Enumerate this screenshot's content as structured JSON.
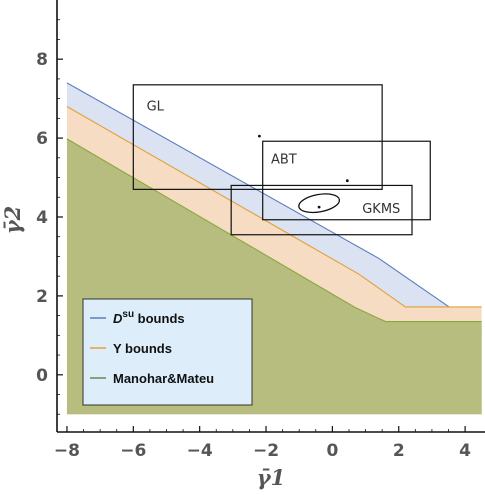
{
  "chart_data": {
    "type": "area",
    "title": "",
    "xlabel": "γ̄1",
    "ylabel": "γ̄2",
    "xlim": [
      -8.3,
      4.6
    ],
    "ylim": [
      -1.45,
      9.5
    ],
    "grid": false,
    "legend_placement": "bottom-left",
    "x_ticks": [
      -8,
      -6,
      -4,
      -2,
      0,
      2,
      4
    ],
    "y_ticks": [
      0,
      2,
      4,
      6,
      8
    ],
    "series": [
      {
        "name": "D^su bounds",
        "color": "#5b7fc0",
        "fill": "#dbe2f2",
        "points": [
          [
            -8.0,
            7.4
          ],
          [
            1.4,
            2.95
          ],
          [
            4.5,
            1.15
          ]
        ]
      },
      {
        "name": "Y bounds",
        "color": "#e3a03a",
        "fill": "#f5dcc2",
        "points": [
          [
            -8.0,
            6.8
          ],
          [
            0.8,
            2.55
          ],
          [
            2.2,
            1.72
          ],
          [
            4.5,
            1.72
          ]
        ]
      },
      {
        "name": "Manohar&Mateu",
        "color": "#8aa83b",
        "fill": "#b7bd7f",
        "points": [
          [
            -8.0,
            5.98
          ],
          [
            0.7,
            1.7
          ],
          [
            1.6,
            1.35
          ],
          [
            4.5,
            1.35
          ]
        ]
      }
    ],
    "region_bottom": -1.0,
    "boxes": [
      {
        "label": "GL",
        "x0": -6.0,
        "x1": 1.5,
        "y0": 4.7,
        "y1": 7.35
      },
      {
        "label": "ABT",
        "x0": -2.1,
        "x1": 2.95,
        "y0": 3.93,
        "y1": 5.92
      },
      {
        "label": "GKMS",
        "x0": -3.05,
        "x1": 2.4,
        "y0": 3.55,
        "y1": 4.8
      }
    ],
    "points": [
      [
        -2.2,
        6.05
      ],
      [
        0.45,
        4.92
      ],
      [
        -0.4,
        4.25
      ]
    ],
    "ellipse": {
      "cx": -0.4,
      "cy": 4.35,
      "rx": 0.62,
      "ry": 0.22,
      "angle": -10
    }
  },
  "legend": {
    "items": [
      {
        "prefix": "D",
        "sup": "su",
        "suffix": " bounds",
        "color": "#5b7fc0"
      },
      {
        "prefix": "Y bounds",
        "sup": "",
        "suffix": "",
        "color": "#e3a03a"
      },
      {
        "prefix": "Manohar&Mateu",
        "sup": "",
        "suffix": "",
        "color": "#5f8a55"
      }
    ]
  }
}
